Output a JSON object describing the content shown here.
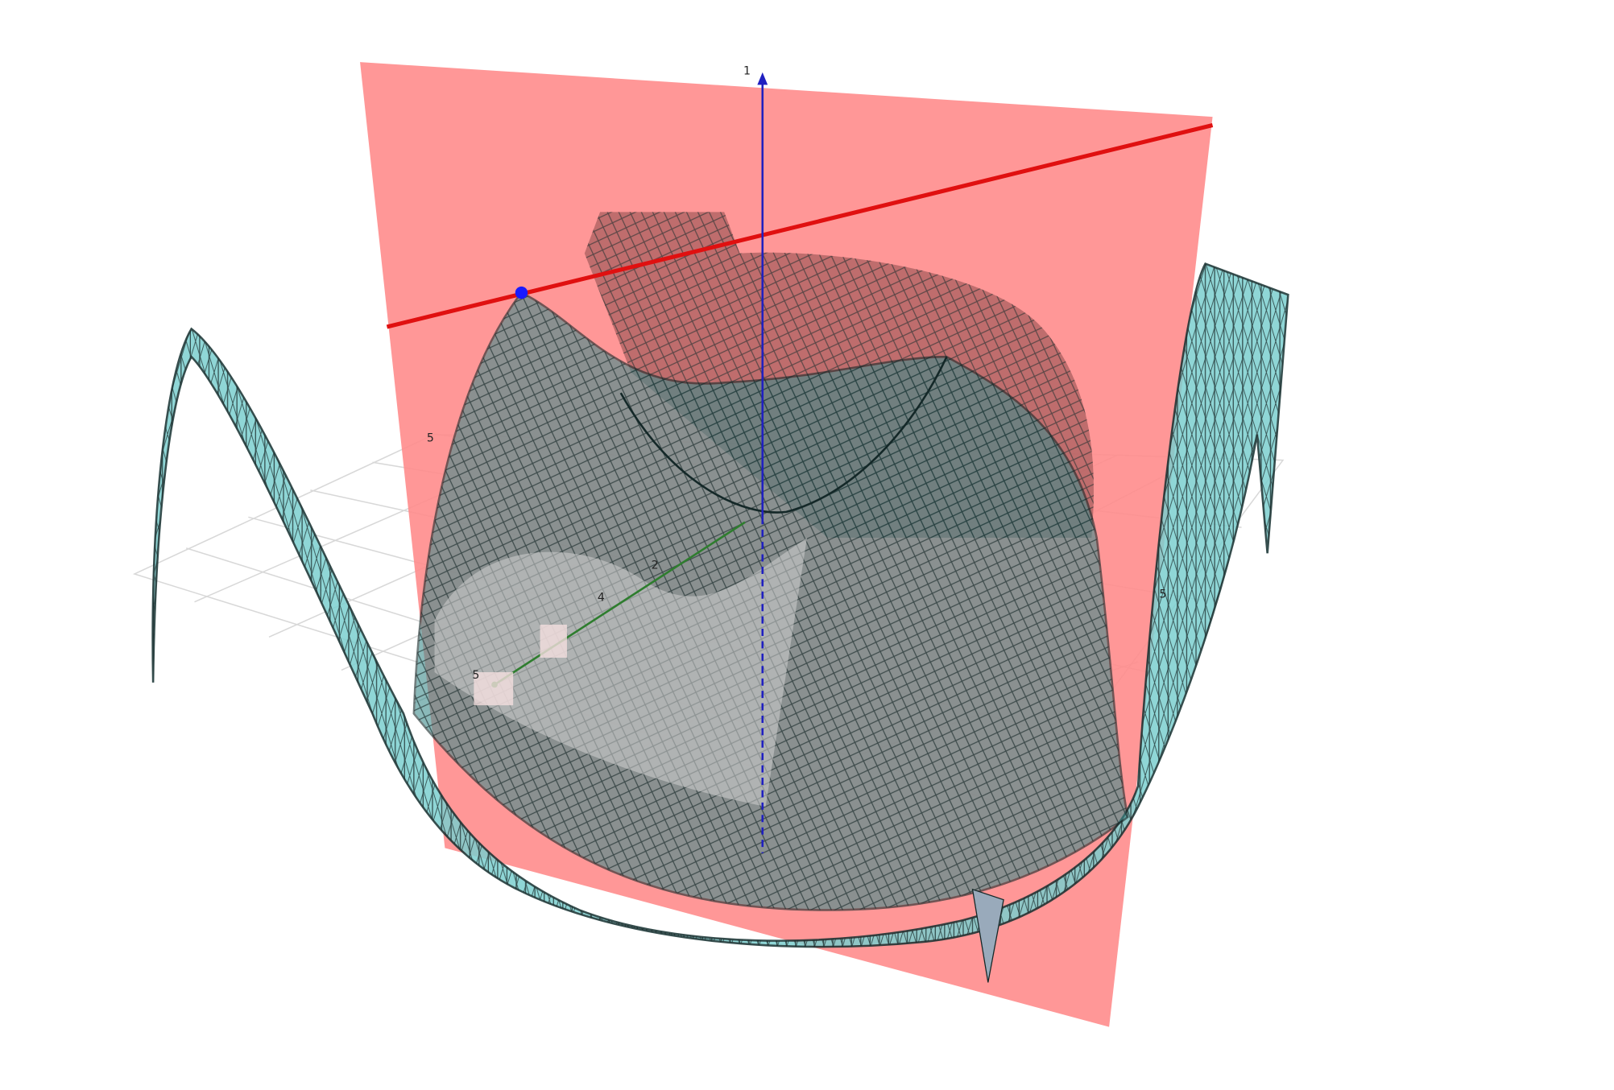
{
  "view": {
    "axis_labels": [
      "1",
      "5",
      "2",
      "4",
      "5",
      "5"
    ]
  }
}
